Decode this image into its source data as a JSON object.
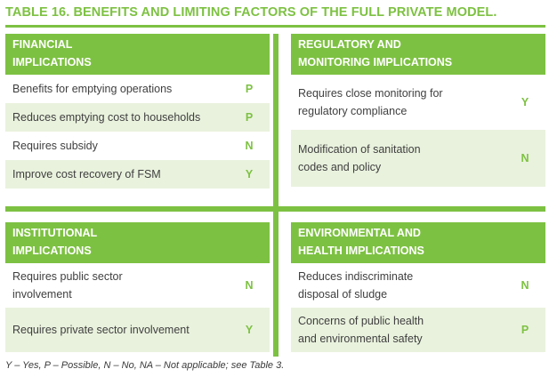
{
  "title": "TABLE 16. BENEFITS AND LIMITING FACTORS OF THE FULL PRIVATE MODEL.",
  "panels": {
    "financial": {
      "heading_line1": "FINANCIAL",
      "heading_line2": "IMPLICATIONS",
      "rows": [
        {
          "text": "Benefits for emptying operations",
          "value": "P"
        },
        {
          "text": "Reduces emptying cost to households",
          "value": "P"
        },
        {
          "text": "Requires subsidy",
          "value": "N"
        },
        {
          "text": "Improve cost recovery of FSM",
          "value": "Y"
        }
      ]
    },
    "regulatory": {
      "heading_line1": "REGULATORY AND",
      "heading_line2": "MONITORING IMPLICATIONS",
      "rows": [
        {
          "text_line1": "Requires close monitoring for",
          "text_line2": "regulatory compliance",
          "value": "Y"
        },
        {
          "text_line1": "Modification of sanitation",
          "text_line2": "codes and policy",
          "value": "N"
        }
      ]
    },
    "institutional": {
      "heading_line1": "INSTITUTIONAL",
      "heading_line2": "IMPLICATIONS",
      "rows": [
        {
          "text_line1": "Requires public sector",
          "text_line2": "involvement",
          "value": "N"
        },
        {
          "text_line1": "Requires private sector involvement",
          "text_line2": "",
          "value": "Y"
        }
      ]
    },
    "environmental": {
      "heading_line1": "ENVIRONMENTAL AND",
      "heading_line2": "HEALTH IMPLICATIONS",
      "rows": [
        {
          "text_line1": "Reduces indiscriminate",
          "text_line2": "disposal of sludge",
          "value": "N"
        },
        {
          "text_line1": "Concerns of public health",
          "text_line2": "and environmental safety",
          "value": "P"
        }
      ]
    }
  },
  "footnote": "Y – Yes, P – Possible, N – No, NA – Not applicable; see Table 3.",
  "colors": {
    "accent": "#7dc142",
    "shade": "#e9f2dd"
  }
}
